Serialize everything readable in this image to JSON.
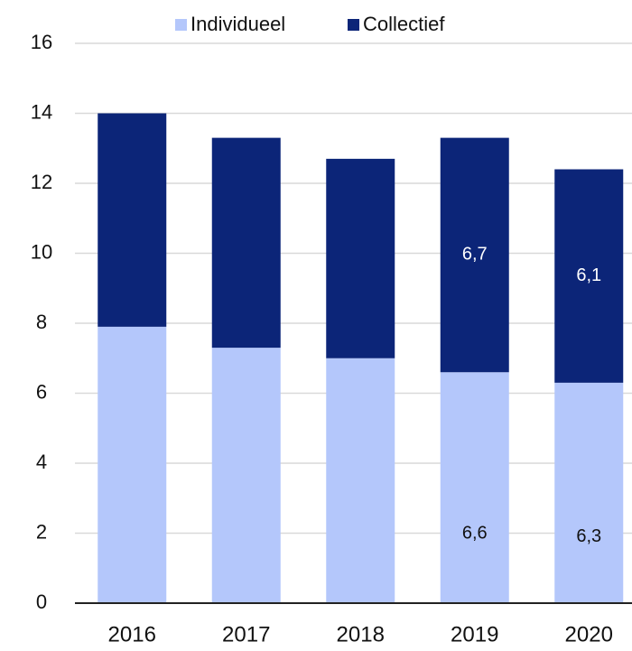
{
  "chart_data": {
    "type": "stacked_bar",
    "categories": [
      "2016",
      "2017",
      "2018",
      "2019",
      "2020"
    ],
    "series": [
      {
        "name": "Individueel",
        "color": "#b4c7fb",
        "values": [
          7.9,
          7.3,
          7.0,
          6.6,
          6.3
        ],
        "value_labels": [
          null,
          null,
          null,
          "6,6",
          "6,3"
        ]
      },
      {
        "name": "Collectief",
        "color": "#0c2578",
        "values": [
          6.1,
          6.0,
          5.7,
          6.7,
          6.1
        ],
        "value_labels": [
          null,
          null,
          null,
          "6,7",
          "6,1"
        ]
      }
    ],
    "ylim": [
      0,
      16
    ],
    "yticks": [
      0,
      2,
      4,
      6,
      8,
      10,
      12,
      14,
      16
    ],
    "grid": true,
    "legend": "top"
  }
}
